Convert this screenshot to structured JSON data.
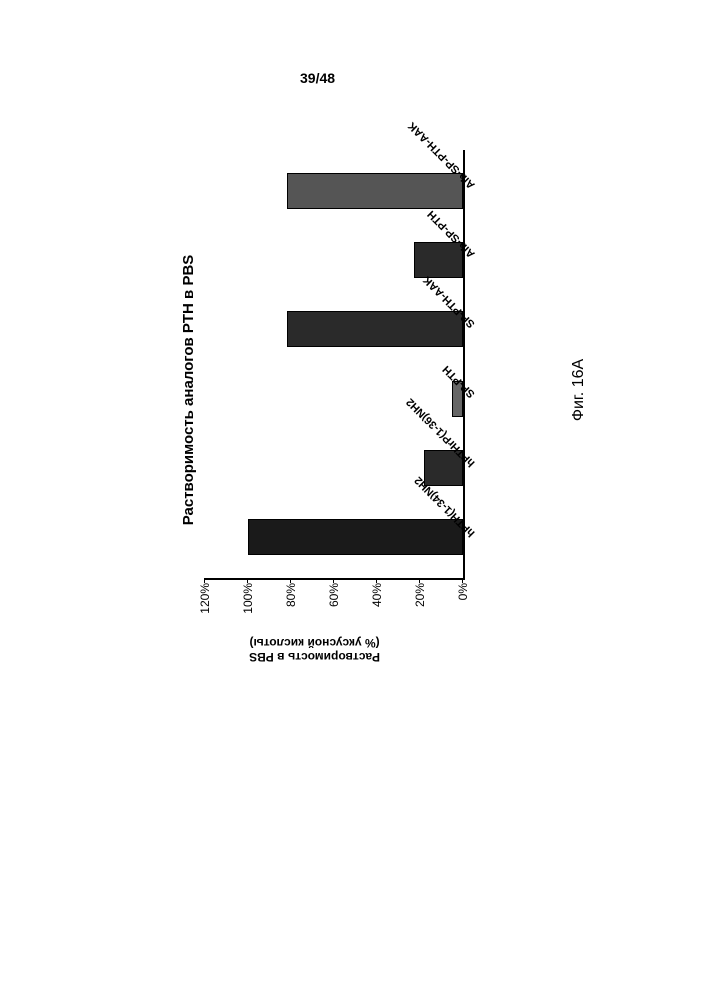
{
  "page_number": "39/48",
  "chart": {
    "type": "bar",
    "title": "Растворимость аналогов PTH в PBS",
    "y_axis": {
      "label_line1": "Растворимость в PBS",
      "label_line2": "(% уксусной кислоты)",
      "ticks": [
        "0%",
        "20%",
        "40%",
        "60%",
        "80%",
        "100%",
        "120%"
      ],
      "min": 0,
      "max": 120
    },
    "background_color": "#ffffff",
    "bars": [
      {
        "label": "hPTH(1-34)NH2",
        "value": 100,
        "fill": "#1a1a1a"
      },
      {
        "label": "hPTHrP(1-36)NH2",
        "value": 18,
        "fill": "#2a2a2a"
      },
      {
        "label": "SP-PTH",
        "value": 5,
        "fill": "#666666"
      },
      {
        "label": "SP-PTH-AAK",
        "value": 82,
        "fill": "#2a2a2a"
      },
      {
        "label": "Aib-SP-PTH",
        "value": 23,
        "fill": "#2a2a2a"
      },
      {
        "label": "Aib-SP-PTH-AAK",
        "value": 82,
        "fill": "#555555"
      }
    ],
    "caption": "Фиг. 16A"
  }
}
